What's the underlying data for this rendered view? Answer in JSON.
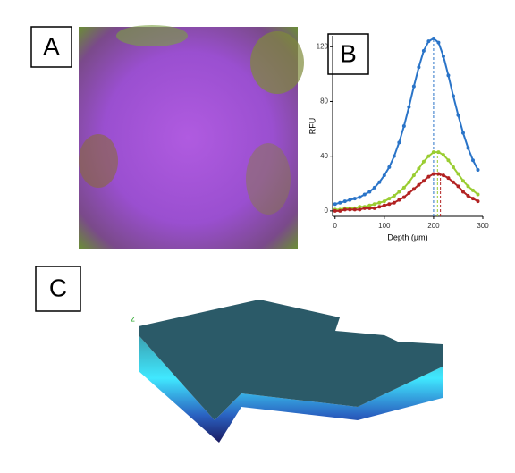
{
  "panels": [
    "A",
    "B",
    "C"
  ],
  "volume_axis_label": "z",
  "chart_data": {
    "type": "line",
    "xlabel": "Depth (µm)",
    "ylabel": "RFU",
    "x": [
      0,
      10,
      20,
      30,
      40,
      50,
      60,
      70,
      80,
      90,
      100,
      110,
      120,
      130,
      140,
      150,
      160,
      170,
      180,
      190,
      200,
      210,
      220,
      230,
      240,
      250,
      260,
      270,
      280,
      290
    ],
    "series": [
      {
        "name": "blue",
        "color": "#2a74c8",
        "peak": 200,
        "values": [
          5,
          6,
          7,
          8,
          9,
          10,
          12,
          14,
          17,
          21,
          26,
          32,
          40,
          50,
          62,
          76,
          91,
          105,
          117,
          124,
          126,
          123,
          113,
          99,
          84,
          70,
          57,
          46,
          37,
          30
        ]
      },
      {
        "name": "green",
        "color": "#9acd32",
        "peak": 208,
        "values": [
          1,
          1,
          2,
          2,
          2,
          3,
          3,
          4,
          5,
          6,
          7,
          9,
          11,
          14,
          17,
          21,
          26,
          31,
          36,
          40,
          43,
          43,
          41,
          37,
          32,
          27,
          22,
          18,
          15,
          12
        ]
      },
      {
        "name": "red",
        "color": "#b22222",
        "peak": 214,
        "values": [
          0,
          0,
          1,
          1,
          1,
          1,
          2,
          2,
          2,
          3,
          4,
          5,
          6,
          8,
          10,
          13,
          16,
          19,
          22,
          25,
          27,
          27,
          26,
          24,
          21,
          18,
          14,
          11,
          9,
          7
        ]
      }
    ],
    "xlim": [
      -5,
      300
    ],
    "ylim": [
      -4,
      128
    ],
    "xticks": [
      0,
      100,
      200,
      300
    ],
    "yticks": [
      0,
      40,
      80,
      120
    ]
  }
}
